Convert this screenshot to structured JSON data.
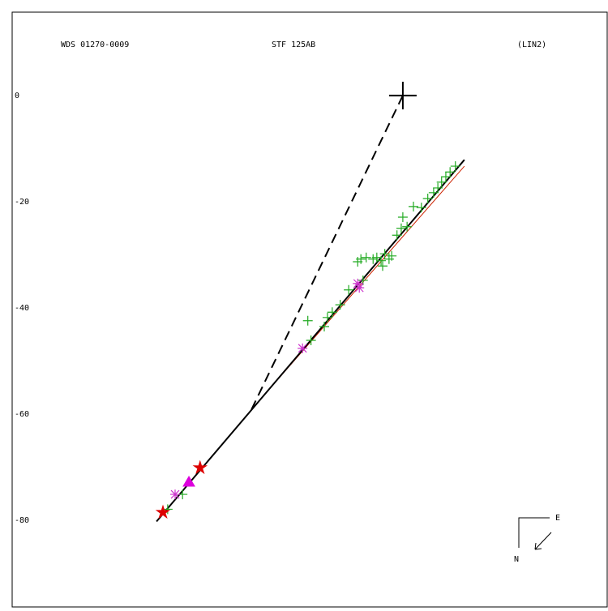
{
  "chart_data": {
    "type": "scatter",
    "annotations": [
      "WDS 01270-0009",
      "STF 125AB",
      "(LIN2)"
    ],
    "compass": {
      "east": "E",
      "north": "N"
    },
    "xlim": [
      -73.6,
      38.5
    ],
    "ylim": [
      -96.3,
      15.7
    ],
    "yticks": [
      0,
      -20,
      -40,
      -60,
      -80
    ],
    "series": [
      {
        "mode": "line",
        "color": "#cc2200",
        "width": 1,
        "x": [
          -28.5,
          11.6
        ],
        "values": [
          -59.1,
          -13.3
        ]
      },
      {
        "mode": "line",
        "color": "#000000",
        "width": 2,
        "x": [
          -46.4,
          11.6
        ],
        "values": [
          -80.2,
          -12.1
        ]
      },
      {
        "mode": "line",
        "color": "#000000",
        "width": 2,
        "dash": true,
        "x": [
          -28.5,
          0
        ],
        "values": [
          -59.1,
          0
        ]
      },
      {
        "mode": "marker",
        "marker": "plus",
        "color": "#22aa22",
        "x": [
          -41.5,
          -44.3,
          -17.9,
          -17.3,
          -14.8,
          -14.2,
          -13.3,
          -11.8,
          -10.2,
          -8.5,
          -7.9,
          -6.9,
          -5.6,
          -4.9,
          -4.1,
          -3.8,
          -3.4,
          -2.6,
          -2.1,
          -1.1,
          -0.3,
          0.0,
          0.8,
          2.0,
          3.5,
          4.7,
          5.8,
          6.6,
          7.3,
          8.1,
          8.9,
          9.9,
          -7.5
        ],
        "values": [
          -75.1,
          -77.9,
          -42.4,
          -46.1,
          -43.5,
          -41.8,
          -40.8,
          -39.4,
          -36.6,
          -31.3,
          -30.8,
          -30.5,
          -30.8,
          -30.5,
          -31.1,
          -32.1,
          -29.8,
          -30.8,
          -30.2,
          -26.3,
          -25.0,
          -22.9,
          -24.7,
          -20.9,
          -21.1,
          -19.4,
          -18.3,
          -17.4,
          -16.3,
          -15.3,
          -14.4,
          -13.3,
          -34.8
        ]
      },
      {
        "mode": "marker",
        "marker": "asterisk",
        "color": "#cc33cc",
        "x": [
          -42.9,
          -18.9,
          -8.5,
          -8.2
        ],
        "values": [
          -75.1,
          -47.6,
          -35.4,
          -36.2
        ]
      },
      {
        "mode": "marker",
        "marker": "triangle",
        "color": "#dd00dd",
        "x": [
          -40.3
        ],
        "values": [
          -72.8
        ]
      },
      {
        "mode": "marker",
        "marker": "star",
        "color": "#dd0000",
        "x": [
          -45.2,
          -38.2
        ],
        "values": [
          -78.5,
          -70.1
        ]
      },
      {
        "mode": "marker",
        "marker": "bigplus",
        "color": "#000000",
        "x": [
          0
        ],
        "values": [
          0
        ]
      }
    ]
  }
}
